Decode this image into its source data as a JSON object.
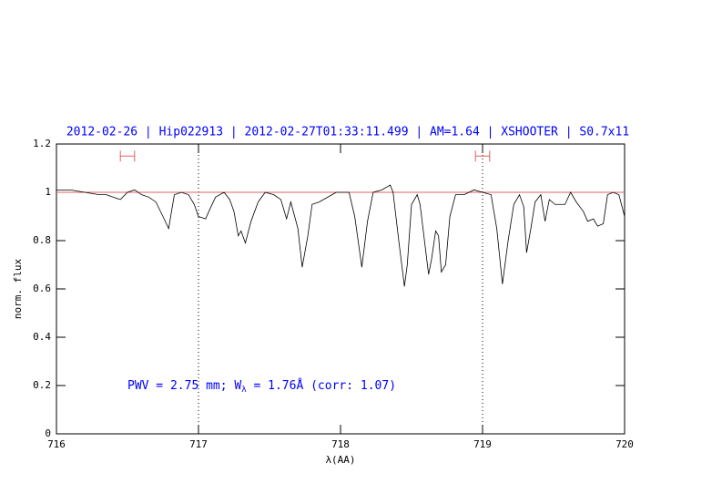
{
  "chart_data": {
    "type": "line",
    "title": "2012-02-26 | Hip022913 | 2012-02-27T01:33:11.499 | AM=1.64 | XSHOOTER | S0.7x11",
    "annotation_parts": [
      "PWV = 2.75 mm; W",
      "λ",
      " = 1.76Å (corr: 1.07)"
    ],
    "xlabel": "λ(AA)",
    "ylabel": "norm. flux",
    "xlim": [
      716,
      720
    ],
    "xticks": [
      716,
      717,
      718,
      719,
      720
    ],
    "ylim": [
      0,
      1.2
    ],
    "yticks": [
      0,
      0.2,
      0.4,
      0.6,
      0.8,
      1,
      1.2
    ],
    "color": "#000000",
    "title_color": "#0000ff",
    "reference_color": "#e06060",
    "reference_line": 1,
    "vlines": [
      717,
      719
    ],
    "interval_y": 1.15,
    "intervals": [
      [
        716.45,
        716.55
      ],
      [
        718.95,
        719.05
      ]
    ],
    "x": [
      716.0,
      716.1,
      716.2,
      716.3,
      716.35,
      716.4,
      716.45,
      716.5,
      716.55,
      716.6,
      716.65,
      716.7,
      716.75,
      716.79,
      716.83,
      716.88,
      716.93,
      716.97,
      717.0,
      717.05,
      717.08,
      717.12,
      717.18,
      717.22,
      717.25,
      717.28,
      717.3,
      717.33,
      717.37,
      717.42,
      717.47,
      717.53,
      717.58,
      717.62,
      717.65,
      717.7,
      717.73,
      717.77,
      717.8,
      717.85,
      717.94,
      717.97,
      718.06,
      718.1,
      718.15,
      718.19,
      718.23,
      718.29,
      718.35,
      718.37,
      718.41,
      718.45,
      718.47,
      718.5,
      718.54,
      718.56,
      718.62,
      718.64,
      718.67,
      718.69,
      718.71,
      718.74,
      718.77,
      718.81,
      718.87,
      718.94,
      719.0,
      719.06,
      719.1,
      719.14,
      719.18,
      719.22,
      719.26,
      719.29,
      719.31,
      719.34,
      719.37,
      719.41,
      719.44,
      719.47,
      719.51,
      719.58,
      719.62,
      719.66,
      719.71,
      719.74,
      719.78,
      719.81,
      719.85,
      719.88,
      719.92,
      719.96,
      720.0
    ],
    "values": [
      1.01,
      1.01,
      1.0,
      0.99,
      0.99,
      0.98,
      0.97,
      1.0,
      1.01,
      0.99,
      0.98,
      0.96,
      0.9,
      0.85,
      0.99,
      1.0,
      0.99,
      0.95,
      0.9,
      0.89,
      0.93,
      0.98,
      1.0,
      0.97,
      0.92,
      0.82,
      0.84,
      0.79,
      0.88,
      0.96,
      1.0,
      0.99,
      0.97,
      0.89,
      0.96,
      0.85,
      0.69,
      0.82,
      0.95,
      0.96,
      0.99,
      1.0,
      1.0,
      0.9,
      0.69,
      0.88,
      1.0,
      1.01,
      1.03,
      1.0,
      0.8,
      0.61,
      0.7,
      0.95,
      0.99,
      0.95,
      0.66,
      0.72,
      0.84,
      0.82,
      0.67,
      0.7,
      0.9,
      0.99,
      0.99,
      1.01,
      1.0,
      0.99,
      0.85,
      0.62,
      0.8,
      0.95,
      0.99,
      0.94,
      0.75,
      0.85,
      0.96,
      0.99,
      0.88,
      0.97,
      0.95,
      0.95,
      1.0,
      0.96,
      0.92,
      0.88,
      0.89,
      0.86,
      0.87,
      0.99,
      1.0,
      0.99,
      0.9
    ]
  }
}
